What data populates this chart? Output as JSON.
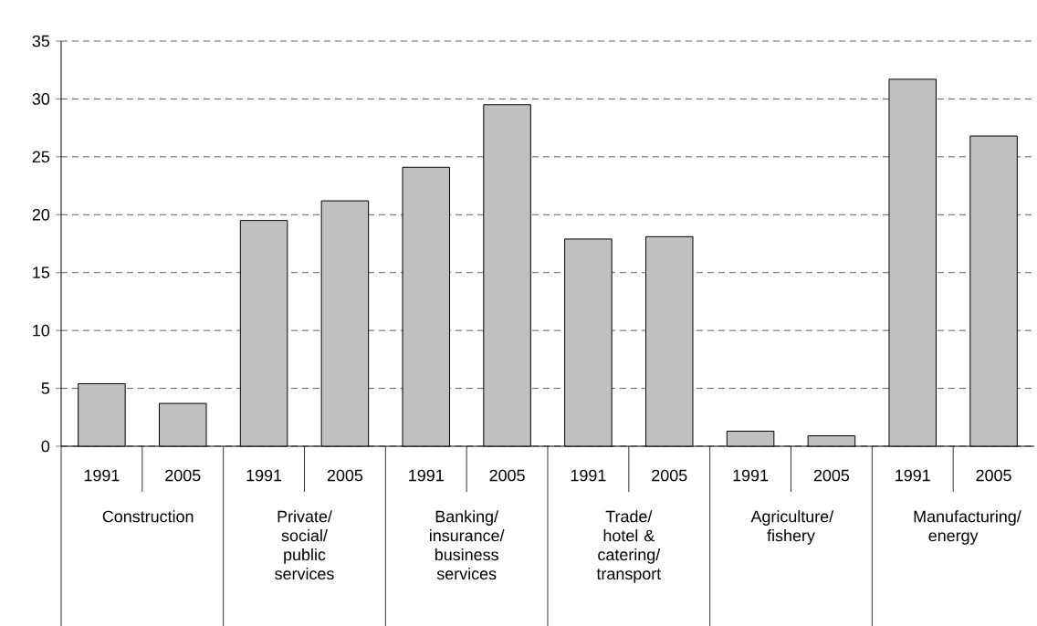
{
  "chart_data": {
    "type": "bar",
    "categories": [
      "Construction",
      "Private/ social/ public services",
      "Banking/ insurance/ business services",
      "Trade/ hotel & catering/ transport",
      "Agriculture/ fishery",
      "Manufacturing/ energy"
    ],
    "series": [
      {
        "name": "1991",
        "color": "#c0c0c0",
        "values": [
          5.4,
          19.5,
          24.1,
          17.9,
          1.3,
          31.7
        ]
      },
      {
        "name": "2005",
        "color": "#c0c0c0",
        "values": [
          3.7,
          21.2,
          29.5,
          18.1,
          0.9,
          26.8
        ]
      }
    ],
    "ylim": [
      0,
      35
    ],
    "yticks": [
      0,
      5,
      10,
      15,
      20,
      25,
      30,
      35
    ],
    "grid": "y"
  }
}
